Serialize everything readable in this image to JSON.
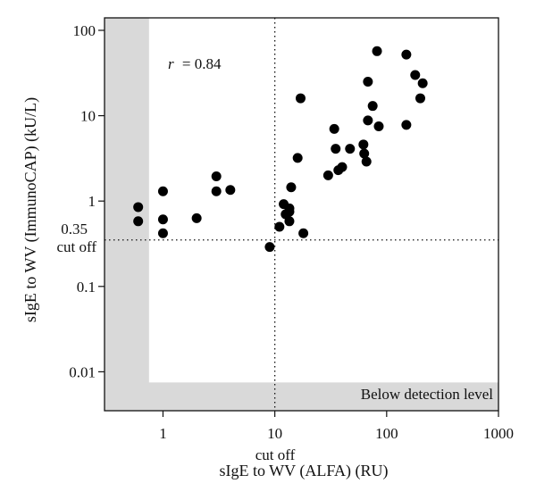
{
  "chart_data": {
    "type": "scatter",
    "title": "",
    "xlabel": "sIgE to WV (ALFA) (RU)",
    "ylabel": "sIgE to WV (ImmunoCAP) (kU/L)",
    "xscale": "log",
    "yscale": "log",
    "xlim": [
      0.3,
      1000
    ],
    "ylim": [
      0.0035,
      140
    ],
    "xticks": [
      1,
      10,
      100,
      1000
    ],
    "xtick_labels": [
      "1",
      "10",
      "100",
      "1000"
    ],
    "yticks": [
      0.01,
      0.1,
      1,
      10,
      100
    ],
    "ytick_labels": [
      "0.01",
      "0.1",
      "1",
      "10",
      "100"
    ],
    "grid": false,
    "correlation_label": "r = 0.84",
    "r_symbol": "r",
    "r_value": "= 0.84",
    "cutoffs": {
      "x": 10,
      "y": 0.35,
      "x_label": "cut off",
      "y_value_label": "0.35",
      "y_label": "cut off"
    },
    "detection_region": {
      "label": "Below detection level",
      "x_max": 0.75,
      "y_max": 0.0075,
      "color": "#d9d9d9"
    },
    "points": [
      {
        "x": 0.6,
        "y": 0.85
      },
      {
        "x": 0.6,
        "y": 0.58
      },
      {
        "x": 1.0,
        "y": 1.3
      },
      {
        "x": 1.0,
        "y": 0.61
      },
      {
        "x": 1.0,
        "y": 0.42
      },
      {
        "x": 2.0,
        "y": 0.63
      },
      {
        "x": 3.0,
        "y": 1.95
      },
      {
        "x": 3.0,
        "y": 1.3
      },
      {
        "x": 4.0,
        "y": 1.35
      },
      {
        "x": 9.0,
        "y": 0.29
      },
      {
        "x": 11.0,
        "y": 0.5
      },
      {
        "x": 12.0,
        "y": 0.92
      },
      {
        "x": 12.5,
        "y": 0.7
      },
      {
        "x": 13.5,
        "y": 0.82
      },
      {
        "x": 13.5,
        "y": 0.75
      },
      {
        "x": 13.5,
        "y": 0.58
      },
      {
        "x": 14.0,
        "y": 1.45
      },
      {
        "x": 16.0,
        "y": 3.2
      },
      {
        "x": 17.0,
        "y": 16.0
      },
      {
        "x": 18.0,
        "y": 0.42
      },
      {
        "x": 30.0,
        "y": 2.0
      },
      {
        "x": 34.0,
        "y": 7.0
      },
      {
        "x": 35.0,
        "y": 4.1
      },
      {
        "x": 37.0,
        "y": 2.3
      },
      {
        "x": 40.0,
        "y": 2.5
      },
      {
        "x": 47.0,
        "y": 4.1
      },
      {
        "x": 62.0,
        "y": 4.6
      },
      {
        "x": 63.0,
        "y": 3.6
      },
      {
        "x": 66.0,
        "y": 2.9
      },
      {
        "x": 68.0,
        "y": 25.0
      },
      {
        "x": 68.0,
        "y": 8.8
      },
      {
        "x": 75.0,
        "y": 13.0
      },
      {
        "x": 82.0,
        "y": 57.0
      },
      {
        "x": 85.0,
        "y": 7.5
      },
      {
        "x": 150.0,
        "y": 52.0
      },
      {
        "x": 150.0,
        "y": 7.8
      },
      {
        "x": 180.0,
        "y": 30.0
      },
      {
        "x": 200.0,
        "y": 16.0
      },
      {
        "x": 210.0,
        "y": 24.0
      }
    ]
  }
}
